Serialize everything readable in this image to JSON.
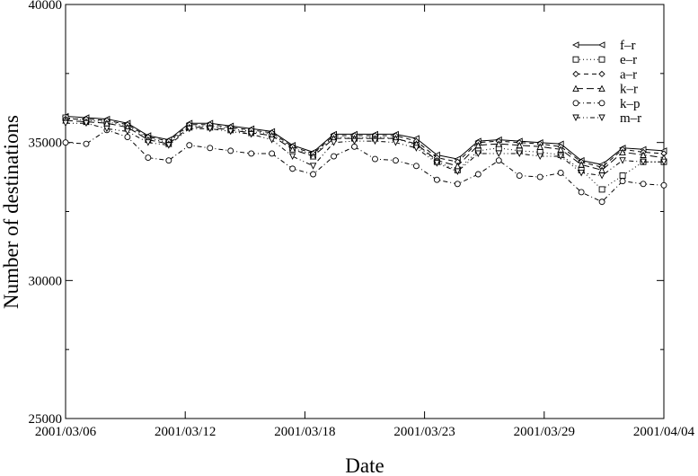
{
  "chart_data": {
    "type": "line",
    "title": "",
    "xlabel": "Date",
    "ylabel": "Number of destinations",
    "ylim": [
      25000,
      40000
    ],
    "yticks": [
      "25000",
      "30000",
      "35000",
      "40000"
    ],
    "xtick_labels": [
      "2001/03/06",
      "2001/03/12",
      "2001/03/18",
      "2001/03/23",
      "2001/03/29",
      "2001/04/04"
    ],
    "legend_position": "top-right",
    "grid": false,
    "x": [
      0,
      1,
      2,
      3,
      4,
      5,
      6,
      7,
      8,
      9,
      10,
      11,
      12,
      13,
      14,
      15,
      16,
      17,
      18,
      19,
      20,
      21,
      22,
      23,
      24,
      25,
      26,
      27,
      28,
      29
    ],
    "series": [
      {
        "name": "f–r",
        "marker": "triangle-left",
        "dash": "",
        "values": [
          35950,
          35900,
          35850,
          35700,
          35250,
          35100,
          35700,
          35700,
          35600,
          35500,
          35400,
          34900,
          34650,
          35300,
          35300,
          35300,
          35300,
          35150,
          34550,
          34400,
          35050,
          35100,
          35050,
          35000,
          34950,
          34350,
          34200,
          34800,
          34750,
          34700
        ]
      },
      {
        "name": "e–r",
        "marker": "square",
        "dash": "1,3",
        "values": [
          35900,
          35800,
          35750,
          35600,
          35150,
          35000,
          35600,
          35600,
          35500,
          35400,
          35300,
          34800,
          34550,
          35200,
          35150,
          35200,
          35150,
          34900,
          34300,
          34000,
          34700,
          34800,
          34700,
          34650,
          34550,
          34000,
          33300,
          33800,
          34300,
          34300
        ]
      },
      {
        "name": "a–r",
        "marker": "diamond",
        "dash": "5,4",
        "values": [
          35850,
          35850,
          35800,
          35650,
          35200,
          35050,
          35650,
          35650,
          35550,
          35450,
          35350,
          34850,
          34600,
          35250,
          35250,
          35250,
          35250,
          35050,
          34450,
          34300,
          35000,
          35050,
          35000,
          34950,
          34850,
          34300,
          34100,
          34750,
          34650,
          34600
        ]
      },
      {
        "name": "k–r",
        "marker": "triangle-up",
        "dash": "8,4",
        "values": [
          35800,
          35750,
          35700,
          35550,
          35100,
          34950,
          35550,
          35550,
          35450,
          35350,
          35250,
          34750,
          34500,
          35150,
          35150,
          35150,
          35150,
          34950,
          34350,
          34150,
          34900,
          34950,
          34900,
          34850,
          34750,
          34200,
          34000,
          34650,
          34550,
          34450
        ]
      },
      {
        "name": "k–p",
        "marker": "circle",
        "dash": "5,3,1,3",
        "values": [
          35000,
          34950,
          35450,
          35200,
          34450,
          34350,
          34900,
          34800,
          34700,
          34600,
          34600,
          34050,
          33850,
          34500,
          34850,
          34400,
          34350,
          34150,
          33650,
          33500,
          33850,
          34350,
          33800,
          33750,
          33900,
          33200,
          32850,
          33600,
          33500,
          33450
        ]
      },
      {
        "name": "m–r",
        "marker": "triangle-down",
        "dash": "5,3,1,3,1,3",
        "values": [
          35700,
          35700,
          35500,
          35400,
          35000,
          34900,
          35500,
          35500,
          35400,
          35300,
          35100,
          34500,
          34150,
          35000,
          35050,
          35050,
          35000,
          34800,
          34250,
          33950,
          34600,
          34600,
          34600,
          34500,
          34500,
          33900,
          33800,
          34350,
          34300,
          34300
        ]
      }
    ]
  }
}
